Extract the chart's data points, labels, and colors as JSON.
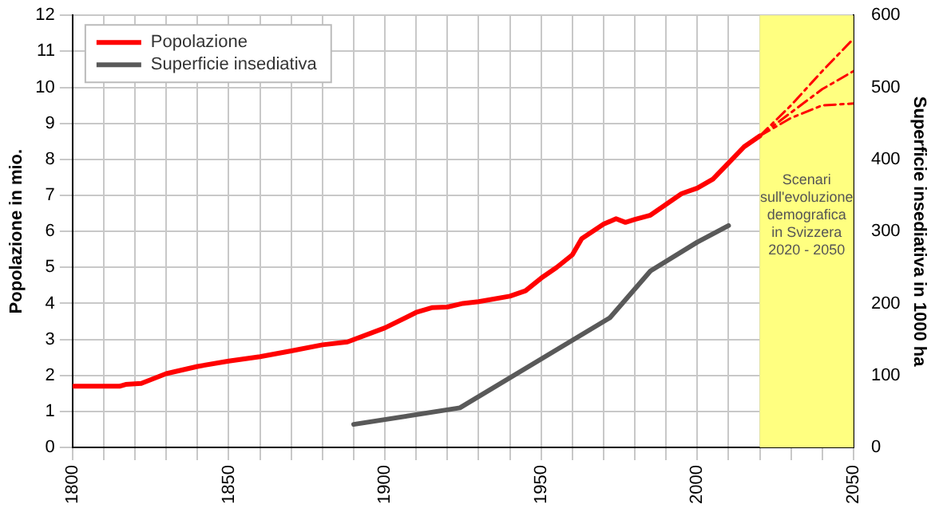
{
  "chart_data": {
    "type": "line",
    "ylabel": "Popolazione in mio.",
    "y2label": "Superficie insediativa in 1000 ha",
    "xlim": [
      1800,
      2050
    ],
    "xticks": [
      1800,
      {
        "value": 1810,
        "label": null
      },
      {
        "value": 1820,
        "label": null
      },
      {
        "value": 1830,
        "label": null
      },
      {
        "value": 1840,
        "label": null
      },
      1850,
      {
        "value": 1860,
        "label": null
      },
      {
        "value": 1870,
        "label": null
      },
      {
        "value": 1880,
        "label": null
      },
      {
        "value": 1890,
        "label": null
      },
      1900,
      {
        "value": 1910,
        "label": null
      },
      {
        "value": 1920,
        "label": null
      },
      {
        "value": 1930,
        "label": null
      },
      {
        "value": 1940,
        "label": null
      },
      1950,
      {
        "value": 1960,
        "label": null
      },
      {
        "value": 1970,
        "label": null
      },
      {
        "value": 1980,
        "label": null
      },
      {
        "value": 1990,
        "label": null
      },
      2000,
      {
        "value": 2010,
        "label": null
      },
      {
        "value": 2020,
        "label": null
      },
      {
        "value": 2030,
        "label": null
      },
      {
        "value": 2040,
        "label": null
      },
      2050
    ],
    "ylim": [
      0,
      12
    ],
    "yticks": [
      0,
      1,
      2,
      3,
      4,
      5,
      6,
      7,
      8,
      9,
      10,
      11,
      12
    ],
    "y2lim": [
      0,
      600
    ],
    "y2ticks": [
      0,
      100,
      200,
      300,
      400,
      500,
      600
    ],
    "grid": true,
    "legend": "top left",
    "bands": [
      {
        "axis": "x",
        "from": 2020,
        "to": 2050,
        "label": "Scenari\nsull'evoluzione\ndemografica\nin Svizzera\n2020 - 2050",
        "color": "#ffff80"
      }
    ],
    "series": [
      {
        "name": "Popolazione",
        "color": "#ff0000",
        "line_style": "solid",
        "x": [
          1800,
          1815,
          1817,
          1822,
          1830,
          1840,
          1850,
          1860,
          1870,
          1880,
          1888,
          1900,
          1910,
          1915,
          1920,
          1925,
          1930,
          1940,
          1945,
          1950,
          1955,
          1960,
          1963,
          1970,
          1974,
          1977,
          1980,
          1985,
          1990,
          1995,
          2000,
          2005,
          2010,
          2015,
          2020
        ],
        "values": [
          1.7,
          1.7,
          1.75,
          1.78,
          2.05,
          2.25,
          2.4,
          2.52,
          2.68,
          2.85,
          2.93,
          3.32,
          3.75,
          3.88,
          3.9,
          4.0,
          4.05,
          4.2,
          4.35,
          4.7,
          5.0,
          5.35,
          5.8,
          6.2,
          6.35,
          6.25,
          6.33,
          6.45,
          6.75,
          7.05,
          7.2,
          7.45,
          7.9,
          8.35,
          8.65
        ]
      },
      {
        "name": "Superficie insediativa",
        "color": "#595959",
        "line_style": "solid",
        "axis": "y2",
        "x": [
          1890,
          1924,
          1972,
          1985,
          2000,
          2010
        ],
        "values": [
          32,
          55,
          180,
          245,
          285,
          308
        ]
      },
      {
        "color": "#ff0000",
        "line_style": "dashed",
        "x": [
          2020,
          2030,
          2040,
          2050
        ],
        "values": [
          8.65,
          9.5,
          10.45,
          11.35
        ]
      },
      {
        "color": "#ff0000",
        "line_style": "dashed",
        "x": [
          2020,
          2030,
          2040,
          2050
        ],
        "values": [
          8.65,
          9.3,
          9.95,
          10.45
        ]
      },
      {
        "color": "#ff0000",
        "line_style": "dashed",
        "x": [
          2020,
          2030,
          2040,
          2050
        ],
        "values": [
          8.65,
          9.15,
          9.5,
          9.55
        ]
      }
    ]
  }
}
